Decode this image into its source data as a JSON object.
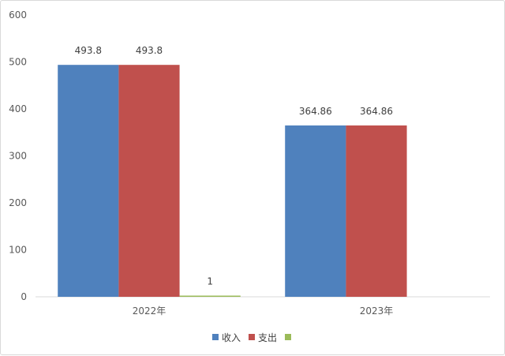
{
  "chart_data": {
    "type": "bar",
    "categories": [
      "2022年",
      "2023年"
    ],
    "series": [
      {
        "name": "收入",
        "color": "#4f81bd",
        "values": [
          493.8,
          364.86
        ],
        "labels": [
          "493.8",
          "364.86"
        ]
      },
      {
        "name": "支出",
        "color": "#c0504d",
        "values": [
          493.8,
          364.86
        ],
        "labels": [
          "493.8",
          "364.86"
        ]
      },
      {
        "name": "",
        "color": "#9bbb59",
        "values": [
          1,
          null
        ],
        "labels": [
          "1",
          null
        ]
      }
    ],
    "ylim": [
      0,
      600
    ],
    "yticks": [
      0,
      100,
      200,
      300,
      400,
      500,
      600
    ],
    "grid": false,
    "legend_position": "bottom"
  }
}
